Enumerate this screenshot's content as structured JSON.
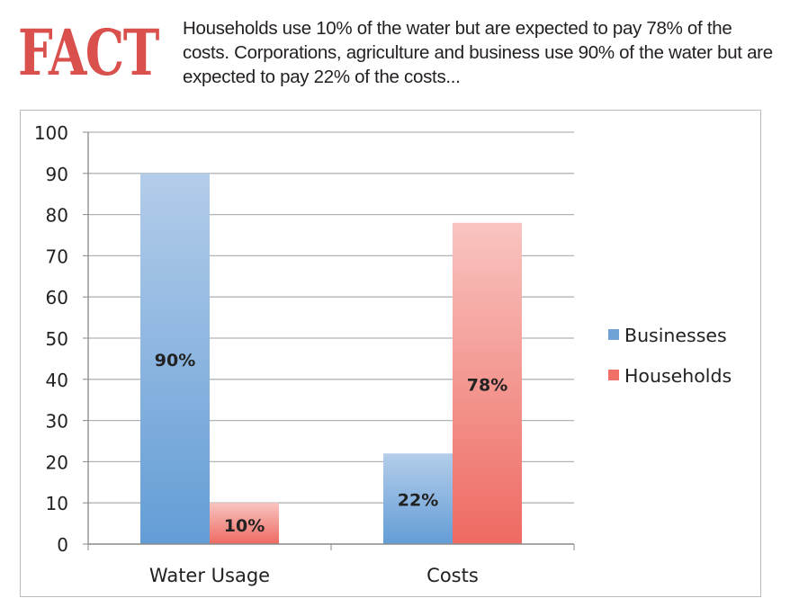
{
  "header": {
    "fact_label": "FACT",
    "blurb": "Households use 10% of the water but are expected to pay 78% of the costs. Corporations, agriculture and business use 90% of the water but are expected to pay 22% of the costs..."
  },
  "chart_data": {
    "type": "bar",
    "title": "",
    "xlabel": "",
    "ylabel": "",
    "ylim": [
      0,
      100
    ],
    "yticks": [
      0,
      10,
      20,
      30,
      40,
      50,
      60,
      70,
      80,
      90,
      100
    ],
    "grid": true,
    "legend_position": "right",
    "categories": [
      "Water Usage",
      "Costs"
    ],
    "series": [
      {
        "name": "Businesses",
        "values": [
          90,
          22
        ],
        "labels": [
          "90%",
          "22%"
        ],
        "color": "#6fa3d8"
      },
      {
        "name": "Households",
        "values": [
          10,
          78
        ],
        "labels": [
          "10%",
          "78%"
        ],
        "color": "#f07068"
      }
    ]
  }
}
